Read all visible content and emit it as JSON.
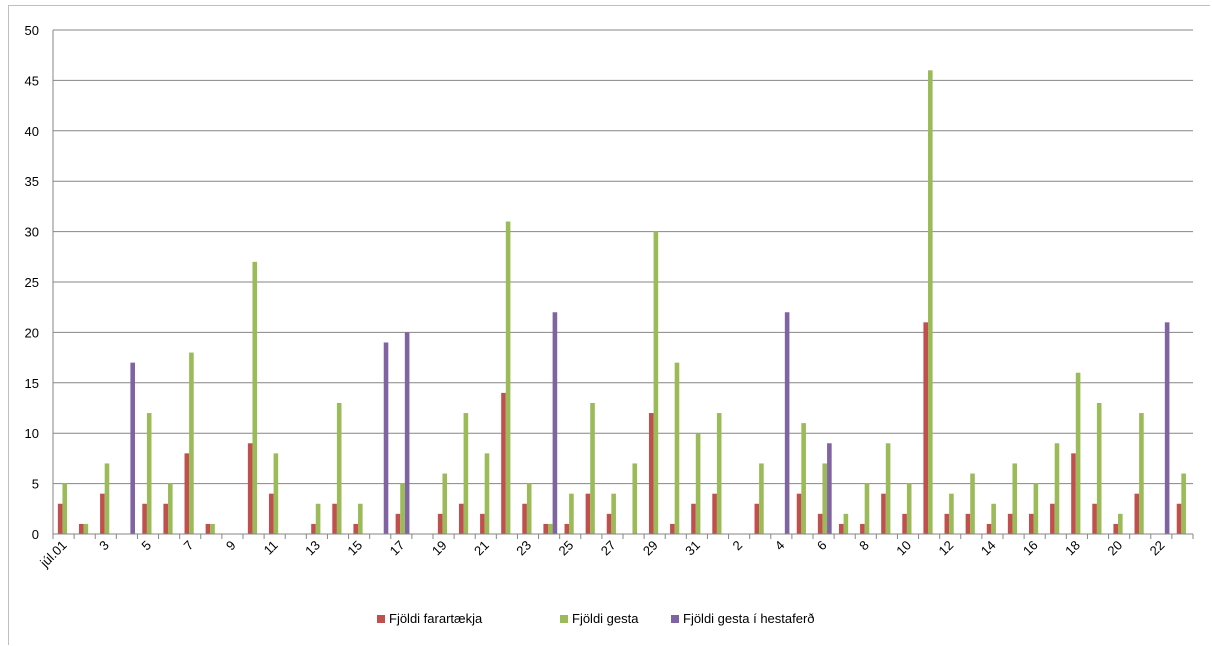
{
  "chart_data": {
    "type": "bar",
    "title": "",
    "xlabel": "",
    "ylabel": "",
    "ylim": [
      0,
      50
    ],
    "yticks": [
      0,
      5,
      10,
      15,
      20,
      25,
      30,
      35,
      40,
      45,
      50
    ],
    "grid": true,
    "legend_position": "bottom",
    "categories": [
      "júl.01",
      "2",
      "3",
      "4",
      "5",
      "6",
      "7",
      "8",
      "9",
      "10",
      "11",
      "12",
      "13",
      "14",
      "15",
      "16",
      "17",
      "18",
      "19",
      "20",
      "21",
      "22",
      "23",
      "24",
      "25",
      "26",
      "27",
      "28",
      "29",
      "30",
      "31",
      "1",
      "2",
      "3",
      "4",
      "5",
      "6",
      "7",
      "8",
      "9",
      "10",
      "11",
      "12",
      "13",
      "14",
      "15",
      "16",
      "17",
      "18",
      "19",
      "20",
      "21",
      "22",
      "23"
    ],
    "shown_tick_labels": [
      "júl.01",
      "3",
      "5",
      "7",
      "9",
      "11",
      "13",
      "15",
      "17",
      "19",
      "21",
      "23",
      "25",
      "27",
      "29",
      "31",
      "2",
      "4",
      "6",
      "8",
      "10",
      "12",
      "14",
      "16",
      "18",
      "20",
      "22"
    ],
    "series": [
      {
        "name": "Fjöldi farartækja",
        "color": "#c0504d",
        "values": [
          3,
          1,
          4,
          0,
          3,
          3,
          8,
          1,
          0,
          9,
          4,
          0,
          1,
          3,
          1,
          0,
          2,
          0,
          2,
          3,
          2,
          14,
          3,
          1,
          1,
          4,
          2,
          0,
          12,
          1,
          3,
          4,
          0,
          3,
          0,
          4,
          2,
          1,
          1,
          4,
          2,
          21,
          2,
          2,
          1,
          2,
          2,
          3,
          8,
          3,
          1,
          4,
          0,
          3
        ]
      },
      {
        "name": "Fjöldi gesta",
        "color": "#9bbb59",
        "values": [
          5,
          1,
          7,
          0,
          12,
          5,
          18,
          1,
          0,
          27,
          8,
          0,
          3,
          13,
          3,
          0,
          5,
          0,
          6,
          12,
          8,
          31,
          5,
          1,
          4,
          13,
          4,
          7,
          30,
          17,
          10,
          12,
          0,
          7,
          0,
          11,
          7,
          2,
          5,
          9,
          5,
          46,
          4,
          6,
          3,
          7,
          5,
          9,
          16,
          13,
          2,
          12,
          0,
          6
        ]
      },
      {
        "name": "Fjöldi gesta í hestaferð",
        "color": "#8064a2",
        "values": [
          0,
          0,
          0,
          17,
          0,
          0,
          0,
          0,
          0,
          0,
          0,
          0,
          0,
          0,
          0,
          19,
          20,
          0,
          0,
          0,
          0,
          0,
          0,
          22,
          0,
          0,
          0,
          0,
          0,
          0,
          0,
          0,
          0,
          0,
          22,
          0,
          9,
          0,
          0,
          0,
          0,
          0,
          0,
          0,
          0,
          0,
          0,
          0,
          0,
          0,
          0,
          0,
          21,
          0
        ]
      }
    ]
  }
}
